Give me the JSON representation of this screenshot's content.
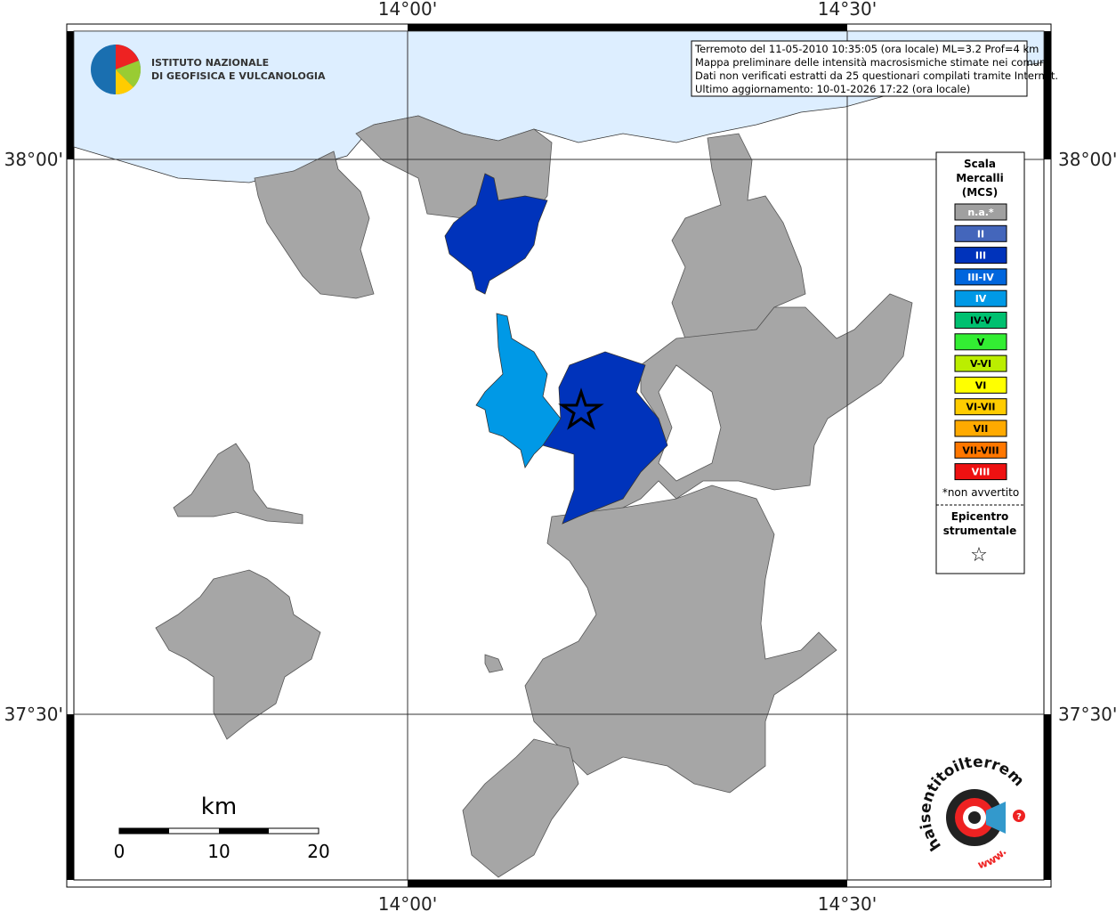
{
  "map": {
    "axis_labels": {
      "top": [
        "14°00'",
        "14°30'"
      ],
      "bottom": [
        "14°00'",
        "14°30'"
      ],
      "left": [
        "38°00'",
        "37°30'"
      ],
      "right": [
        "38°00'",
        "37°30'"
      ]
    },
    "institute_logo": {
      "lines": [
        "ISTITUTO NAZIONALE",
        "DI GEOFISICA E VULCANOLOGIA"
      ]
    },
    "info": [
      "Terremoto del 11-05-2010 10:35:05 (ora locale) ML=3.2 Prof=4 km",
      "Mappa preliminare delle intensità macrosismiche stimate nei comuni",
      "Dati non verificati estratti da 25 questionari compilati tramite Internet.",
      "Ultimo aggiornamento: 10-01-2026 17:22 (ora locale)"
    ],
    "legend": {
      "title": [
        "Scala",
        "Mercalli",
        "(MCS)"
      ],
      "items": [
        {
          "label": "n.a.*",
          "color": "#a0a0a0",
          "text_color": "#ffffff"
        },
        {
          "label": "II",
          "color": "#4466bb",
          "text_color": "#ffffff"
        },
        {
          "label": "III",
          "color": "#0033bb",
          "text_color": "#ffffff"
        },
        {
          "label": "III-IV",
          "color": "#0066dd",
          "text_color": "#ffffff"
        },
        {
          "label": "IV",
          "color": "#0099e6",
          "text_color": "#ffffff"
        },
        {
          "label": "IV-V",
          "color": "#00c070",
          "text_color": "#000000"
        },
        {
          "label": "V",
          "color": "#33ee33",
          "text_color": "#000000"
        },
        {
          "label": "V-VI",
          "color": "#bbee00",
          "text_color": "#000000"
        },
        {
          "label": "VI",
          "color": "#ffff00",
          "text_color": "#000000"
        },
        {
          "label": "VI-VII",
          "color": "#ffcc00",
          "text_color": "#000000"
        },
        {
          "label": "VII",
          "color": "#ffaa00",
          "text_color": "#000000"
        },
        {
          "label": "VII-VIII",
          "color": "#ff7700",
          "text_color": "#000000"
        },
        {
          "label": "VIII",
          "color": "#ee1111",
          "text_color": "#ffffff"
        }
      ],
      "note": "*non avvertito",
      "epicenter": [
        "Epicentro",
        "strumentale"
      ],
      "epicenter_symbol": "☆"
    },
    "scale_bar": {
      "unit": "km",
      "labels": [
        0,
        10,
        20
      ]
    },
    "site_logo": {
      "text": "haisentitoilterremoto.it",
      "prefix": "www.",
      "mark": "?"
    }
  }
}
